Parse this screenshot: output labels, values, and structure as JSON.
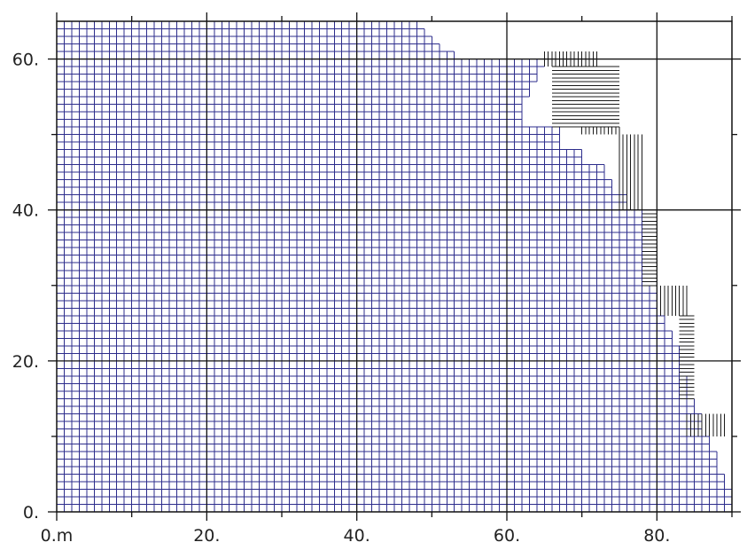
{
  "chart_data": {
    "type": "heatmap",
    "title": "",
    "xlabel": "",
    "ylabel": "",
    "xlim": [
      0,
      90
    ],
    "ylim": [
      0,
      65
    ],
    "x_ticks": [
      {
        "value": 0,
        "label": "0.m"
      },
      {
        "value": 20,
        "label": "20."
      },
      {
        "value": 40,
        "label": "40."
      },
      {
        "value": 60,
        "label": "60."
      },
      {
        "value": 80,
        "label": "80."
      }
    ],
    "y_ticks": [
      {
        "value": 0,
        "label": "0."
      },
      {
        "value": 20,
        "label": "20."
      },
      {
        "value": 40,
        "label": "40."
      },
      {
        "value": 60,
        "label": "60."
      }
    ],
    "grid": true,
    "mesh": {
      "fine_spacing_m": 1,
      "max_x_by_band": [
        {
          "y0": 64,
          "y1": 65,
          "x_max": 48
        },
        {
          "y0": 63,
          "y1": 64,
          "x_max": 49
        },
        {
          "y0": 62,
          "y1": 63,
          "x_max": 50
        },
        {
          "y0": 61,
          "y1": 62,
          "x_max": 51
        },
        {
          "y0": 60,
          "y1": 61,
          "x_max": 53
        },
        {
          "y0": 59,
          "y1": 60,
          "x_max": 65
        },
        {
          "y0": 57,
          "y1": 59,
          "x_max": 64
        },
        {
          "y0": 55,
          "y1": 57,
          "x_max": 63
        },
        {
          "y0": 51,
          "y1": 55,
          "x_max": 62
        },
        {
          "y0": 48,
          "y1": 51,
          "x_max": 67
        },
        {
          "y0": 46,
          "y1": 48,
          "x_max": 70
        },
        {
          "y0": 44,
          "y1": 46,
          "x_max": 73
        },
        {
          "y0": 42,
          "y1": 44,
          "x_max": 74
        },
        {
          "y0": 40,
          "y1": 42,
          "x_max": 76
        },
        {
          "y0": 36,
          "y1": 40,
          "x_max": 78
        },
        {
          "y0": 30,
          "y1": 36,
          "x_max": 78
        },
        {
          "y0": 26,
          "y1": 30,
          "x_max": 80
        },
        {
          "y0": 24,
          "y1": 26,
          "x_max": 81
        },
        {
          "y0": 22,
          "y1": 24,
          "x_max": 82
        },
        {
          "y0": 18,
          "y1": 22,
          "x_max": 83
        },
        {
          "y0": 15,
          "y1": 18,
          "x_max": 84
        },
        {
          "y0": 13,
          "y1": 15,
          "x_max": 85
        },
        {
          "y0": 10,
          "y1": 13,
          "x_max": 86
        },
        {
          "y0": 8,
          "y1": 10,
          "x_max": 87
        },
        {
          "y0": 5,
          "y1": 8,
          "x_max": 88
        },
        {
          "y0": 3,
          "y1": 5,
          "x_max": 89
        },
        {
          "y0": 0,
          "y1": 3,
          "x_max": 90
        }
      ],
      "transition_zones": [
        {
          "x0": 65,
          "x1": 72,
          "y0": 59,
          "y1": 61,
          "lines": "vertical"
        },
        {
          "x0": 66,
          "x1": 75,
          "y0": 51,
          "y1": 59,
          "lines": "horizontal"
        },
        {
          "x0": 70,
          "x1": 75,
          "y0": 50,
          "y1": 51,
          "lines": "vertical"
        },
        {
          "x0": 75,
          "x1": 78,
          "y0": 40,
          "y1": 50,
          "lines": "vertical"
        },
        {
          "x0": 78,
          "x1": 80,
          "y0": 30,
          "y1": 40,
          "lines": "horizontal"
        },
        {
          "x0": 80,
          "x1": 84,
          "y0": 26,
          "y1": 30,
          "lines": "vertical"
        },
        {
          "x0": 83,
          "x1": 85,
          "y0": 15,
          "y1": 26,
          "lines": "horizontal"
        },
        {
          "x0": 84,
          "x1": 89,
          "y0": 10,
          "y1": 13,
          "lines": "vertical"
        }
      ],
      "colors": {
        "mesh": "#2d2d8c",
        "transition": "#1a1a1a",
        "axis": "#111111",
        "grid": "#111111"
      }
    }
  }
}
